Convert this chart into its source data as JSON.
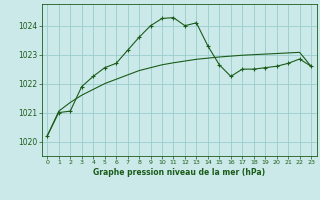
{
  "title": "Graphe pression niveau de la mer (hPa)",
  "background_color": "#cce9e9",
  "grid_color": "#99cccc",
  "line_color": "#1a5c1a",
  "label_color": "#1a5c1a",
  "xlim": [
    -0.5,
    23.5
  ],
  "ylim": [
    1019.5,
    1024.75
  ],
  "yticks": [
    1020,
    1021,
    1022,
    1023,
    1024
  ],
  "xticks": [
    0,
    1,
    2,
    3,
    4,
    5,
    6,
    7,
    8,
    9,
    10,
    11,
    12,
    13,
    14,
    15,
    16,
    17,
    18,
    19,
    20,
    21,
    22,
    23
  ],
  "xtick_labels": [
    "0",
    "1",
    "2",
    "3",
    "4",
    "5",
    "6",
    "7",
    "8",
    "9",
    "10",
    "11",
    "12",
    "13",
    "14",
    "15",
    "16",
    "17",
    "18",
    "19",
    "20",
    "21",
    "22",
    "23"
  ],
  "series1_x": [
    0,
    1,
    2,
    3,
    4,
    5,
    6,
    7,
    8,
    9,
    10,
    11,
    12,
    13,
    14,
    15,
    16,
    17,
    18,
    19,
    20,
    21,
    22,
    23
  ],
  "series1_y": [
    1020.2,
    1021.0,
    1021.05,
    1021.9,
    1022.25,
    1022.55,
    1022.7,
    1023.15,
    1023.6,
    1024.0,
    1024.25,
    1024.28,
    1024.0,
    1024.1,
    1023.3,
    1022.65,
    1022.25,
    1022.5,
    1022.5,
    1022.55,
    1022.6,
    1022.7,
    1022.85,
    1022.6
  ],
  "series2_x": [
    0,
    1,
    2,
    3,
    4,
    5,
    6,
    7,
    8,
    9,
    10,
    11,
    12,
    13,
    14,
    15,
    16,
    17,
    18,
    19,
    20,
    21,
    22,
    23
  ],
  "series2_y": [
    1020.2,
    1021.05,
    1021.35,
    1021.6,
    1021.8,
    1022.0,
    1022.15,
    1022.3,
    1022.45,
    1022.55,
    1022.65,
    1022.72,
    1022.78,
    1022.84,
    1022.88,
    1022.92,
    1022.95,
    1022.98,
    1023.0,
    1023.02,
    1023.04,
    1023.06,
    1023.08,
    1022.6
  ]
}
